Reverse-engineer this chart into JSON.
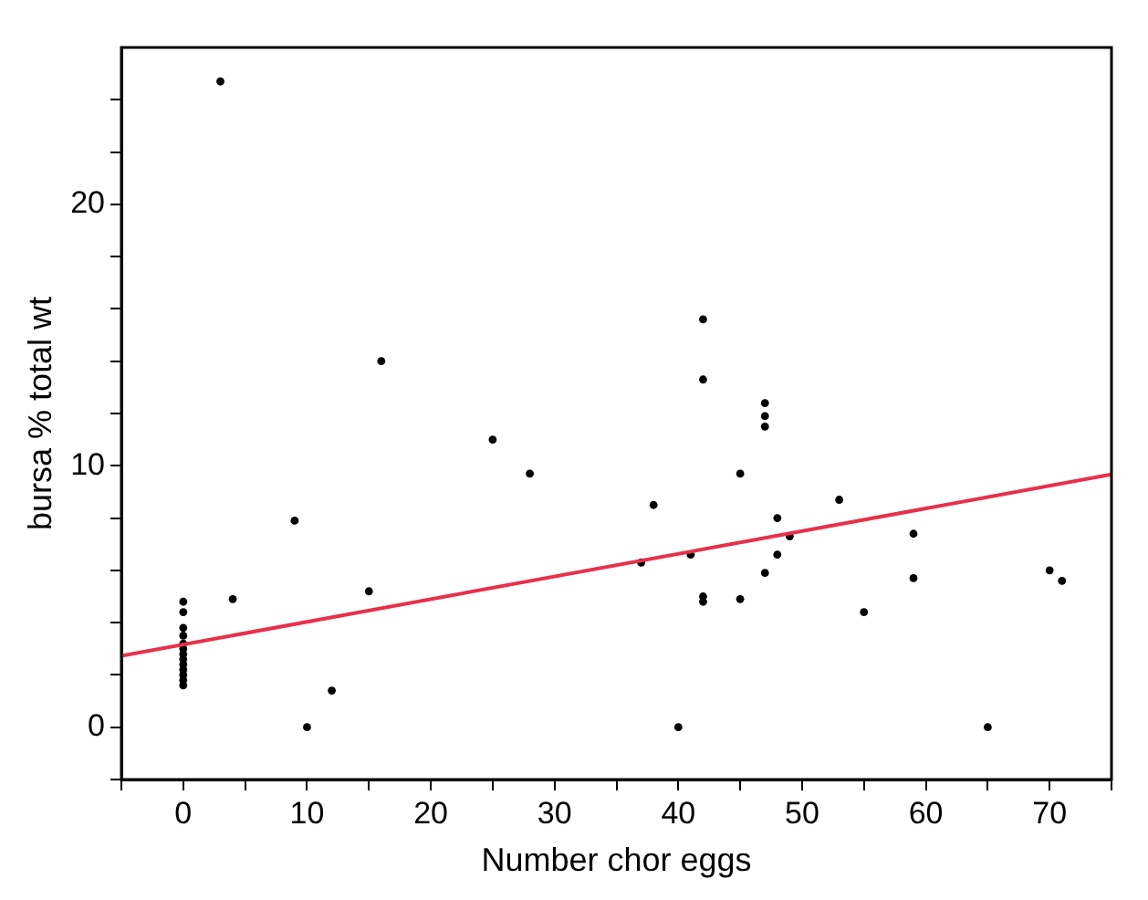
{
  "chart_data": {
    "type": "scatter",
    "xlabel": "Number chor eggs",
    "ylabel": "bursa % total wt",
    "xlim": [
      -5,
      75
    ],
    "ylim": [
      -2,
      26
    ],
    "xticks": [
      {
        "value": -5,
        "label": null
      },
      0,
      {
        "value": 5,
        "label": null
      },
      10,
      {
        "value": 15,
        "label": null
      },
      20,
      {
        "value": 25,
        "label": null
      },
      30,
      {
        "value": 35,
        "label": null
      },
      40,
      {
        "value": 45,
        "label": null
      },
      50,
      {
        "value": 55,
        "label": null
      },
      60,
      {
        "value": 65,
        "label": null
      },
      70,
      {
        "value": 75,
        "label": null
      }
    ],
    "yticks": [
      {
        "value": -2,
        "label": null
      },
      0,
      {
        "value": 2,
        "label": null
      },
      {
        "value": 4,
        "label": null
      },
      {
        "value": 6,
        "label": null
      },
      {
        "value": 8,
        "label": null
      },
      10,
      {
        "value": 12,
        "label": null
      },
      {
        "value": 14,
        "label": null
      },
      {
        "value": 16,
        "label": null
      },
      {
        "value": 18,
        "label": null
      },
      20,
      {
        "value": 22,
        "label": null
      },
      {
        "value": 24,
        "label": null
      }
    ],
    "grid": false,
    "legend": false,
    "marker": "circle",
    "series": [
      {
        "color": "#000000",
        "x": [
          0,
          0,
          0,
          0,
          0,
          0,
          0,
          0,
          0,
          0,
          0,
          0,
          0,
          3,
          4,
          9,
          10,
          12,
          15,
          16,
          25,
          28,
          37,
          38,
          40,
          41,
          42,
          42,
          42,
          42,
          45,
          45,
          47,
          47,
          47,
          47,
          48,
          48,
          49,
          53,
          55,
          59,
          59,
          65,
          70,
          71
        ],
        "values": [
          4.8,
          4.4,
          3.8,
          3.5,
          3.2,
          3.0,
          2.8,
          2.6,
          2.4,
          2.2,
          2.0,
          1.8,
          1.6,
          24.7,
          4.9,
          7.9,
          0,
          1.4,
          5.2,
          14.0,
          11.0,
          9.7,
          6.3,
          8.5,
          0,
          6.6,
          15.6,
          13.3,
          5.0,
          4.8,
          9.7,
          4.9,
          12.4,
          11.9,
          11.5,
          5.9,
          8.0,
          6.6,
          7.3,
          8.7,
          4.4,
          7.4,
          5.7,
          0,
          6.0,
          5.6
        ]
      },
      {
        "type": "line",
        "color": "#e8304a",
        "x": [
          -5,
          75
        ],
        "values": [
          2.73,
          9.67
        ],
        "marker": "none",
        "line_style": "solid"
      }
    ]
  }
}
